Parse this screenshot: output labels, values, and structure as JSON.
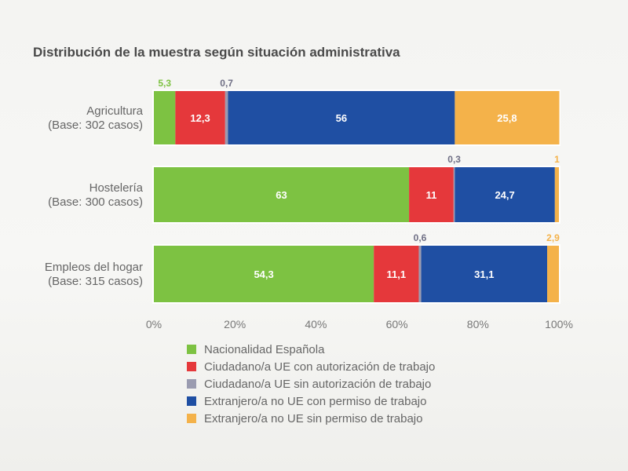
{
  "chart_data": {
    "type": "bar",
    "orientation": "horizontal",
    "stacked": true,
    "title": "Distribución de la muestra según situación administrativa",
    "categories": [
      [
        "Agricultura",
        "(Base: 302 casos)"
      ],
      [
        "Hostelería",
        "(Base: 300 casos)"
      ],
      [
        "Empleos del hogar",
        "(Base: 315 casos)"
      ]
    ],
    "series": [
      {
        "name": "Nacionalidad Española",
        "color": "#7dc242",
        "values": [
          5.3,
          63,
          54.3
        ],
        "labels": [
          "5,3",
          "63",
          "54,3"
        ]
      },
      {
        "name": "Ciudadano/a UE con autorización de trabajo",
        "color": "#e5383b",
        "values": [
          12.3,
          11,
          11.1
        ],
        "labels": [
          "12,3",
          "11",
          "11,1"
        ]
      },
      {
        "name": "Ciudadano/a UE sin autorización de trabajo",
        "color": "#9a9bb0",
        "values": [
          0.7,
          0.3,
          0.6
        ],
        "labels": [
          "0,7",
          "0,3",
          "0,6"
        ]
      },
      {
        "name": "Extranjero/a no UE con permiso de trabajo",
        "color": "#1f4fa3",
        "values": [
          56,
          24.7,
          31.1
        ],
        "labels": [
          "56",
          "24,7",
          "31,1"
        ]
      },
      {
        "name": "Extranjero/a no UE sin permiso de trabajo",
        "color": "#f4b24a",
        "values": [
          25.8,
          1,
          2.9
        ],
        "labels": [
          "25,8",
          "1",
          "2,9"
        ]
      }
    ],
    "xlim": [
      0,
      100
    ],
    "xticks": [
      "0%",
      "20%",
      "40%",
      "60%",
      "80%",
      "100%"
    ],
    "grid": false,
    "legend_position": "bottom"
  }
}
